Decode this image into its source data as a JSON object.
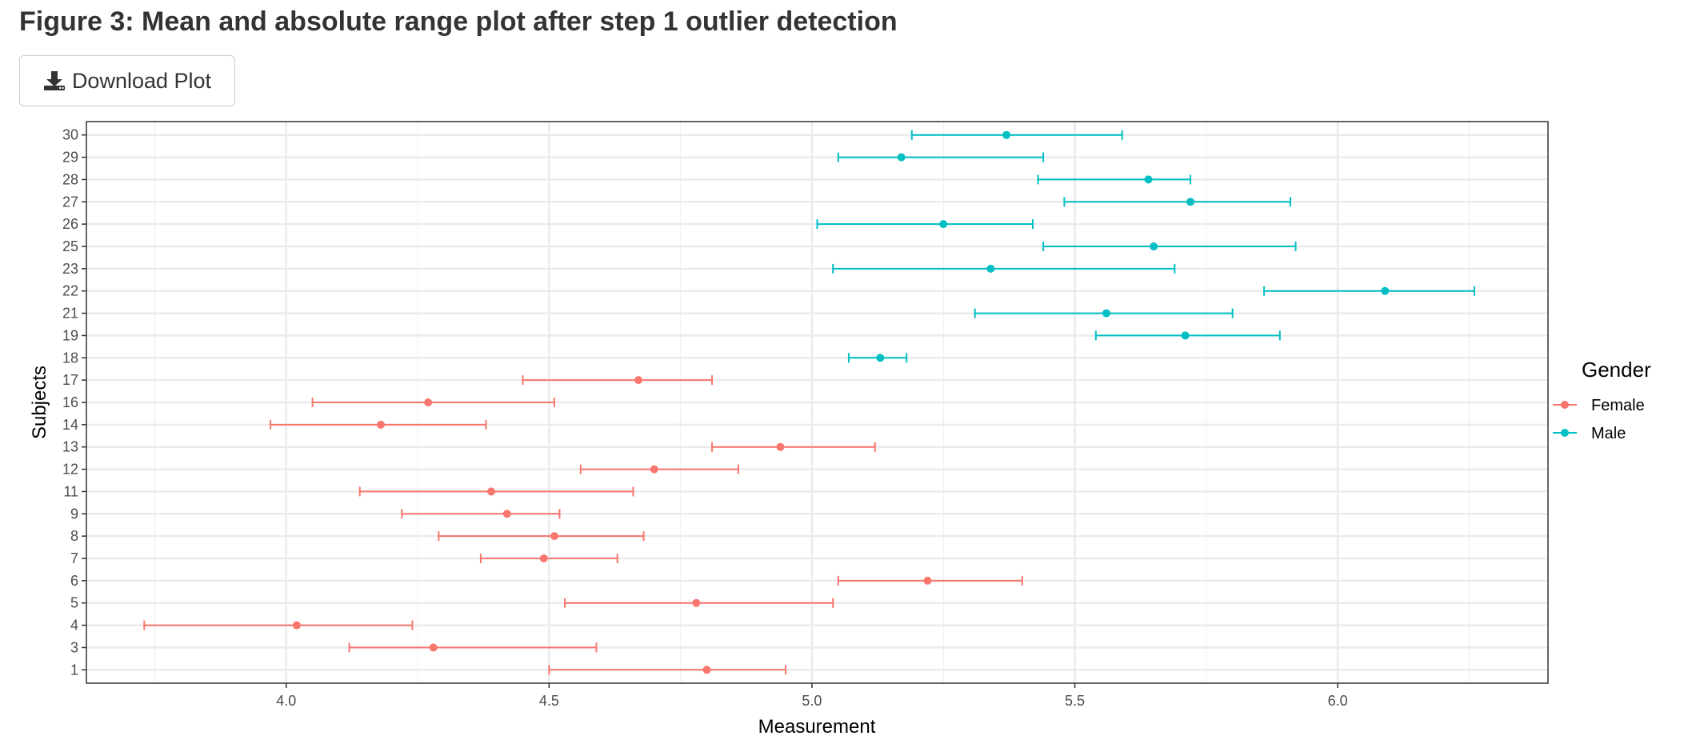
{
  "page": {
    "title": "Figure 3: Mean and absolute range plot after step 1 outlier detection",
    "download_label": "Download Plot",
    "download_icon": "download-icon"
  },
  "chart_data": {
    "type": "errorbar",
    "xlabel": "Measurement",
    "ylabel": "Subjects",
    "xlim": [
      3.62,
      6.4
    ],
    "xticks": [
      4.0,
      4.5,
      5.0,
      5.5,
      6.0
    ],
    "xtick_labels": [
      "4.0",
      "4.5",
      "5.0",
      "5.5",
      "6.0"
    ],
    "grid": true,
    "legend": {
      "title": "Gender",
      "position": "right",
      "entries": [
        {
          "name": "Female",
          "color": "#f8766d"
        },
        {
          "name": "Male",
          "color": "#00bfc4"
        }
      ]
    },
    "subjects": [
      "1",
      "3",
      "4",
      "5",
      "6",
      "7",
      "8",
      "9",
      "11",
      "12",
      "13",
      "14",
      "16",
      "17",
      "18",
      "19",
      "21",
      "22",
      "23",
      "25",
      "26",
      "27",
      "28",
      "29",
      "30"
    ],
    "points": [
      {
        "subject": "1",
        "gender": "Female",
        "mean": 4.8,
        "min": 4.5,
        "max": 4.95
      },
      {
        "subject": "3",
        "gender": "Female",
        "mean": 4.28,
        "min": 4.12,
        "max": 4.59
      },
      {
        "subject": "4",
        "gender": "Female",
        "mean": 4.02,
        "min": 3.73,
        "max": 4.24
      },
      {
        "subject": "5",
        "gender": "Female",
        "mean": 4.78,
        "min": 4.53,
        "max": 5.04
      },
      {
        "subject": "6",
        "gender": "Female",
        "mean": 5.22,
        "min": 5.05,
        "max": 5.4
      },
      {
        "subject": "7",
        "gender": "Female",
        "mean": 4.49,
        "min": 4.37,
        "max": 4.63
      },
      {
        "subject": "8",
        "gender": "Female",
        "mean": 4.51,
        "min": 4.29,
        "max": 4.68
      },
      {
        "subject": "9",
        "gender": "Female",
        "mean": 4.42,
        "min": 4.22,
        "max": 4.52
      },
      {
        "subject": "11",
        "gender": "Female",
        "mean": 4.39,
        "min": 4.14,
        "max": 4.66
      },
      {
        "subject": "12",
        "gender": "Female",
        "mean": 4.7,
        "min": 4.56,
        "max": 4.86
      },
      {
        "subject": "13",
        "gender": "Female",
        "mean": 4.94,
        "min": 4.81,
        "max": 5.12
      },
      {
        "subject": "14",
        "gender": "Female",
        "mean": 4.18,
        "min": 3.97,
        "max": 4.38
      },
      {
        "subject": "16",
        "gender": "Female",
        "mean": 4.27,
        "min": 4.05,
        "max": 4.51
      },
      {
        "subject": "17",
        "gender": "Female",
        "mean": 4.67,
        "min": 4.45,
        "max": 4.81
      },
      {
        "subject": "18",
        "gender": "Male",
        "mean": 5.13,
        "min": 5.07,
        "max": 5.18
      },
      {
        "subject": "19",
        "gender": "Male",
        "mean": 5.71,
        "min": 5.54,
        "max": 5.89
      },
      {
        "subject": "21",
        "gender": "Male",
        "mean": 5.56,
        "min": 5.31,
        "max": 5.8
      },
      {
        "subject": "22",
        "gender": "Male",
        "mean": 6.09,
        "min": 5.86,
        "max": 6.26
      },
      {
        "subject": "23",
        "gender": "Male",
        "mean": 5.34,
        "min": 5.04,
        "max": 5.69
      },
      {
        "subject": "25",
        "gender": "Male",
        "mean": 5.65,
        "min": 5.44,
        "max": 5.92
      },
      {
        "subject": "26",
        "gender": "Male",
        "mean": 5.25,
        "min": 5.01,
        "max": 5.42
      },
      {
        "subject": "27",
        "gender": "Male",
        "mean": 5.72,
        "min": 5.48,
        "max": 5.91
      },
      {
        "subject": "28",
        "gender": "Male",
        "mean": 5.64,
        "min": 5.43,
        "max": 5.72
      },
      {
        "subject": "29",
        "gender": "Male",
        "mean": 5.17,
        "min": 5.05,
        "max": 5.44
      },
      {
        "subject": "30",
        "gender": "Male",
        "mean": 5.37,
        "min": 5.19,
        "max": 5.59
      }
    ]
  }
}
